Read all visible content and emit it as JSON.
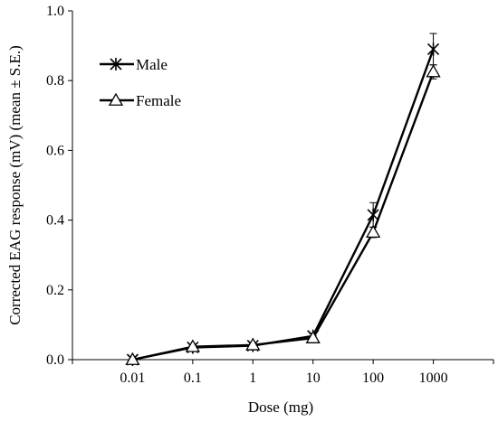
{
  "chart_data": {
    "type": "line",
    "xlabel": "Dose (mg)",
    "ylabel": "Corrected EAG response (mV) (mean ± S.E.)",
    "categories": [
      "0.01",
      "0.1",
      "1",
      "10",
      "100",
      "1000"
    ],
    "ylim": [
      0,
      1.0
    ],
    "yticks": [
      "0.0",
      "0.2",
      "0.4",
      "0.6",
      "0.8",
      "1.0"
    ],
    "grid": false,
    "legend_position": "top-left",
    "series": [
      {
        "name": "Male",
        "marker": "star",
        "values": [
          0.0,
          0.035,
          0.04,
          0.068,
          0.415,
          0.89
        ],
        "errors": [
          0.002,
          0.006,
          0.006,
          0.006,
          0.035,
          0.045
        ]
      },
      {
        "name": "Female",
        "marker": "triangle",
        "values": [
          0.0,
          0.037,
          0.042,
          0.062,
          0.365,
          0.825
        ],
        "errors": [
          0.002,
          0.006,
          0.006,
          0.006,
          0.015,
          0.02
        ]
      }
    ]
  }
}
